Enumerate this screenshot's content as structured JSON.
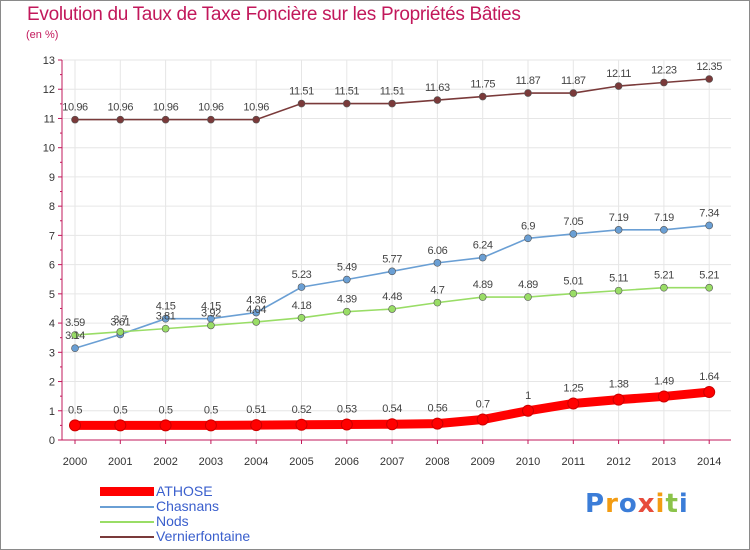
{
  "chart_data": {
    "type": "line",
    "title": "Evolution du Taux de Taxe Foncière sur les Propriétés Bâties",
    "unit_label": "(en %)",
    "xlabel": "",
    "ylabel": "(en %)",
    "ylim": [
      0,
      13
    ],
    "yticks": [
      "0",
      "1",
      "2",
      "3",
      "4",
      "5",
      "6",
      "7",
      "8",
      "9",
      "10",
      "11",
      "12",
      "13"
    ],
    "categories": [
      "2000",
      "2001",
      "2002",
      "2003",
      "2004",
      "2005",
      "2006",
      "2007",
      "2008",
      "2009",
      "2010",
      "2011",
      "2012",
      "2013",
      "2014"
    ],
    "grid": true,
    "legend_position": "bottom-left",
    "series": [
      {
        "name": "ATHOSE",
        "color": "#ff0000",
        "emphasis": true,
        "values": [
          0.5,
          0.5,
          0.5,
          0.5,
          0.51,
          0.52,
          0.53,
          0.54,
          0.56,
          0.7,
          1,
          1.25,
          1.38,
          1.49,
          1.64
        ],
        "labels": [
          "0.5",
          "0.5",
          "0.5",
          "0.5",
          "0.51",
          "0.52",
          "0.53",
          "0.54",
          "0.56",
          "0.7",
          "1",
          "1.25",
          "1.38",
          "1.49",
          "1.64"
        ]
      },
      {
        "name": "Chasnans",
        "color": "#6a9fd4",
        "emphasis": false,
        "values": [
          3.14,
          3.61,
          4.15,
          4.15,
          4.36,
          5.23,
          5.49,
          5.77,
          6.06,
          6.24,
          6.9,
          7.05,
          7.19,
          7.19,
          7.34
        ],
        "labels": [
          "3.14",
          "3.61",
          "4.15",
          "4.15",
          "4.36",
          "5.23",
          "5.49",
          "5.77",
          "6.06",
          "6.24",
          "6.9",
          "7.05",
          "7.19",
          "7.19",
          "7.34"
        ]
      },
      {
        "name": "Nods",
        "color": "#99dd66",
        "emphasis": false,
        "values": [
          3.59,
          3.7,
          3.81,
          3.92,
          4.04,
          4.18,
          4.39,
          4.48,
          4.7,
          4.89,
          4.89,
          5.01,
          5.11,
          5.21,
          5.21
        ],
        "labels": [
          "3.59",
          "3.7",
          "3.81",
          "3.92",
          "4.04",
          "4.18",
          "4.39",
          "4.48",
          "4.7",
          "4.89",
          "4.89",
          "5.01",
          "5.11",
          "5.21",
          "5.21"
        ]
      },
      {
        "name": "Vernierfontaine",
        "color": "#7a3a3a",
        "emphasis": false,
        "values": [
          10.96,
          10.96,
          10.96,
          10.96,
          10.96,
          11.51,
          11.51,
          11.51,
          11.63,
          11.75,
          11.87,
          11.87,
          12.11,
          12.23,
          12.35
        ],
        "labels": [
          "10.96",
          "10.96",
          "10.96",
          "10.96",
          "10.96",
          "11.51",
          "11.51",
          "11.51",
          "11.63",
          "11.75",
          "11.87",
          "11.87",
          "12.11",
          "12.23",
          "12.35"
        ]
      }
    ]
  },
  "brand": {
    "text": "Proxiti",
    "letter_colors": [
      "#3b7dd8",
      "#f39c12",
      "#3b7dd8",
      "#e74c3c",
      "#f39c12",
      "#8bc34a",
      "#3b7dd8"
    ]
  }
}
